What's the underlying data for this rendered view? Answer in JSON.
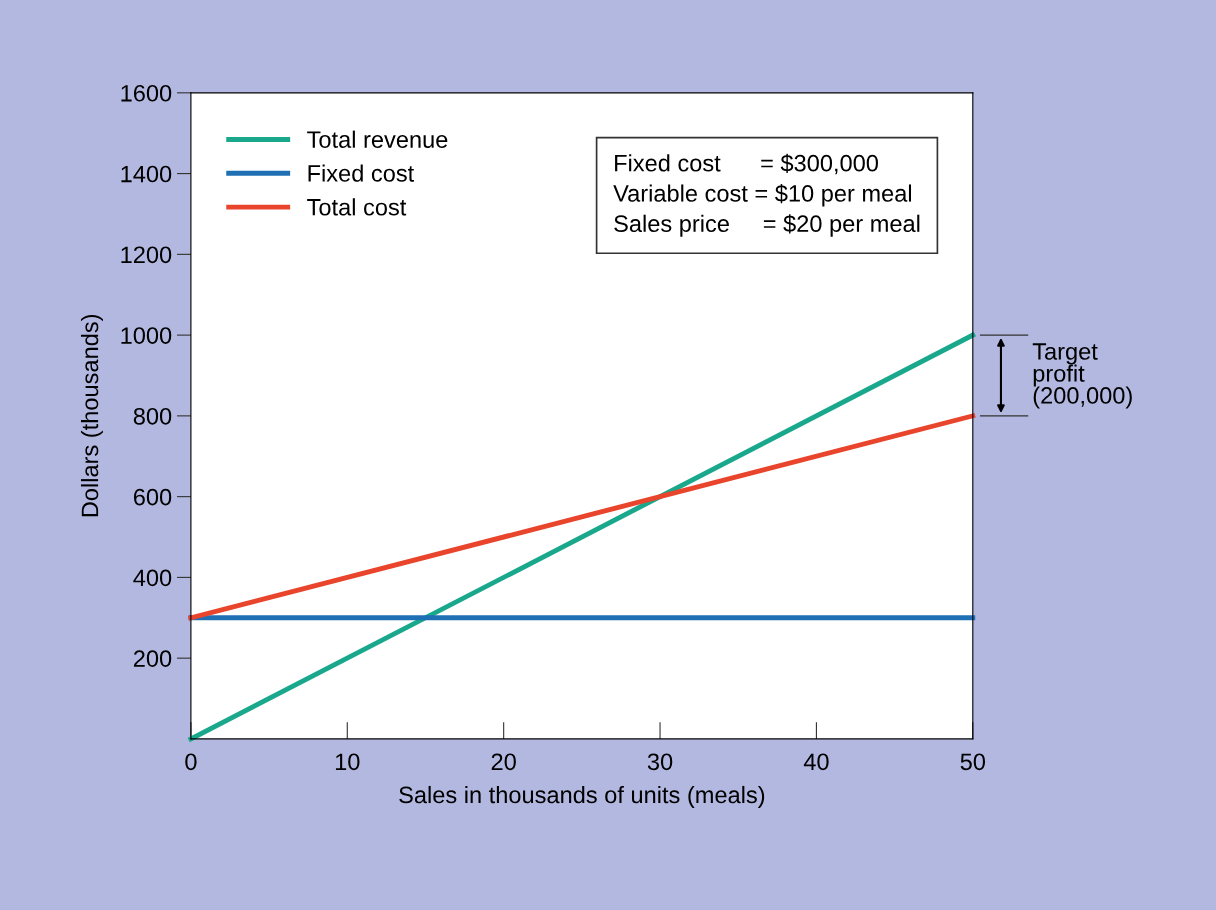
{
  "chart_data": {
    "type": "line",
    "xlabel": "Sales in thousands of units (meals)",
    "ylabel": "Dollars (thousands)",
    "x": [
      0,
      50
    ],
    "series": [
      {
        "name": "Total revenue",
        "color": "#1aa88c",
        "values": [
          0,
          1000
        ]
      },
      {
        "name": "Fixed cost",
        "color": "#1f6fb5",
        "values": [
          300,
          300
        ]
      },
      {
        "name": "Total cost",
        "color": "#e8452c",
        "values": [
          300,
          800
        ]
      }
    ],
    "xlim": [
      0,
      50
    ],
    "xticks": [
      0,
      10,
      20,
      30,
      40,
      50
    ],
    "ylim": [
      0,
      1600
    ],
    "yticks": [
      200,
      400,
      600,
      800,
      1000,
      1200,
      1400,
      1600
    ],
    "grid": false,
    "legend": "top left",
    "marker": "none",
    "line_style": "solid",
    "annotations": [
      "Fixed cost      = $300,000\nVariable cost = $10 per meal\nSales price     = $20 per meal",
      "Target\nprofit\n(200,000)"
    ]
  }
}
